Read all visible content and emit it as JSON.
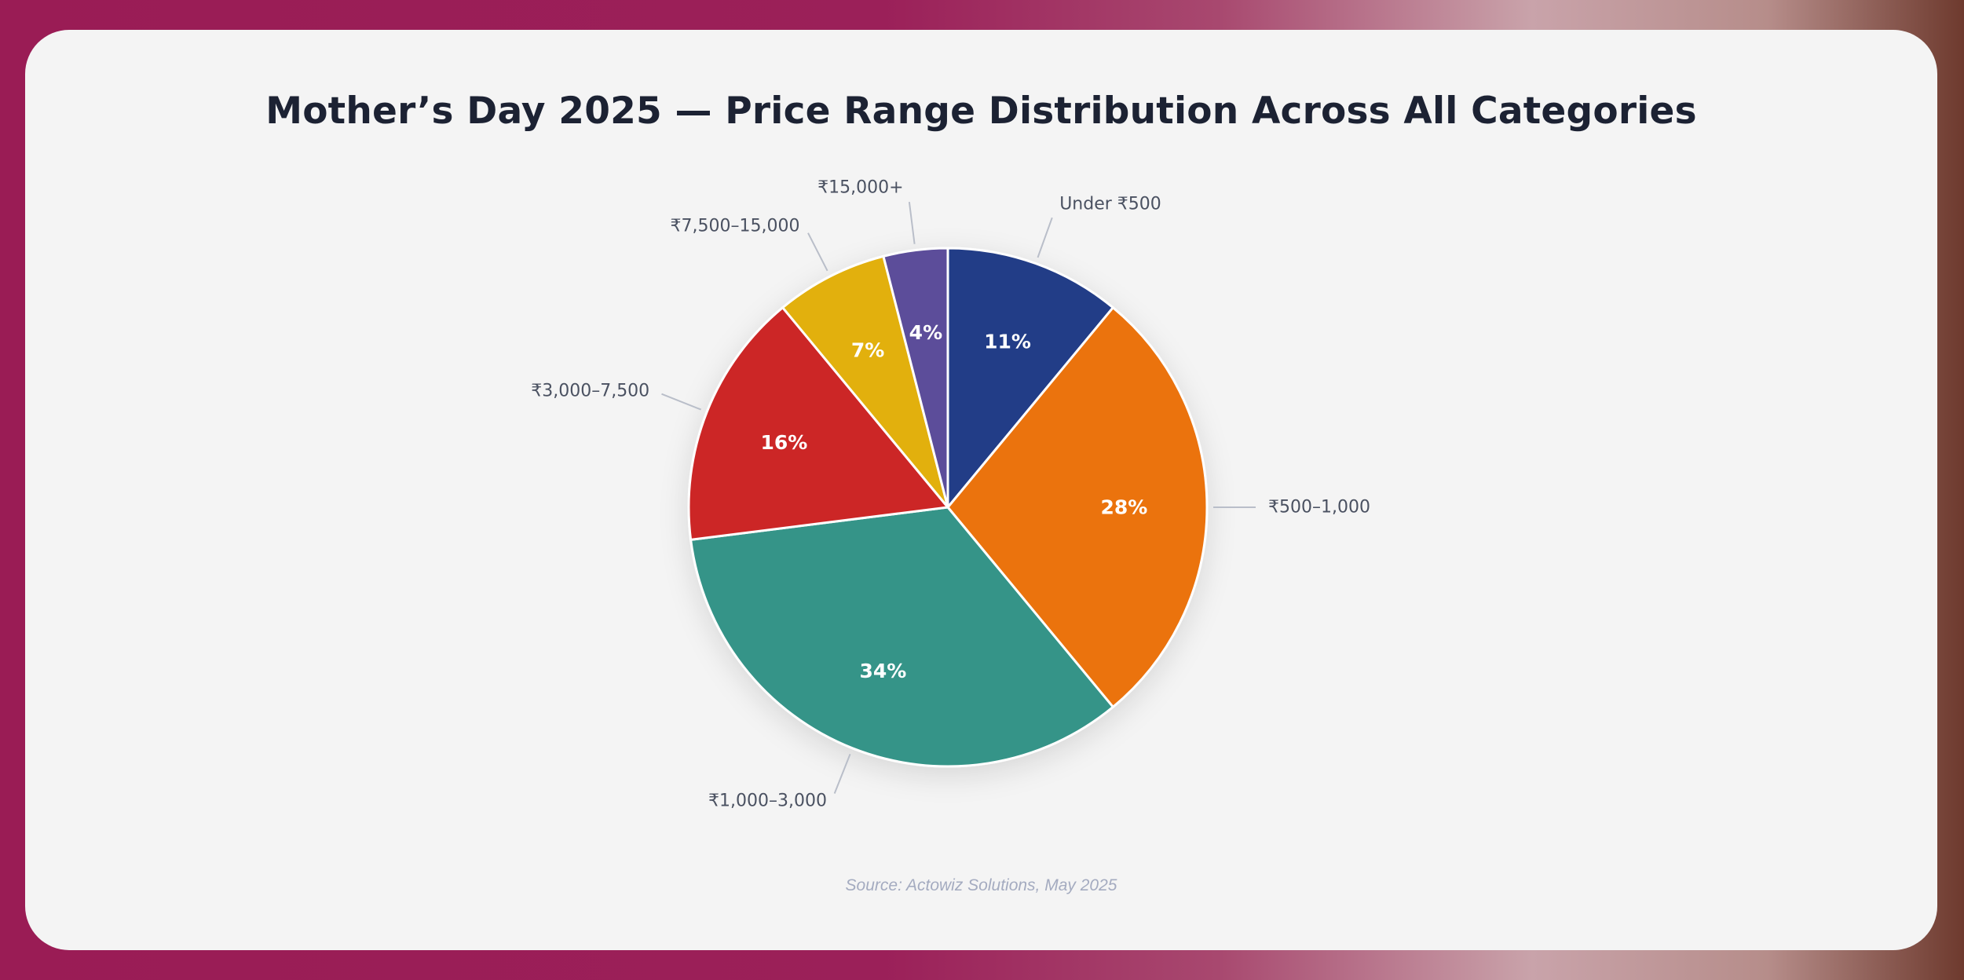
{
  "chart_data": {
    "type": "pie",
    "title": "Mother’s Day 2025 — Price Range Distribution Across All Categories",
    "categories": [
      "Under ₹500",
      "₹500–1,000",
      "₹1,000–3,000",
      "₹3,000–7,500",
      "₹7,500–15,000",
      "₹15,000+"
    ],
    "values": [
      11,
      28,
      34,
      16,
      7,
      4
    ],
    "value_labels": [
      "11%",
      "28%",
      "34%",
      "16%",
      "7%",
      "4%"
    ],
    "colors": [
      "#233c87",
      "#eb7310",
      "#359488",
      "#cc2828",
      "#e2b008",
      "#5b4d9a"
    ],
    "start_angle_deg": 0,
    "direction": "clockwise",
    "source": "Source: Actowiz Solutions, May 2025"
  }
}
